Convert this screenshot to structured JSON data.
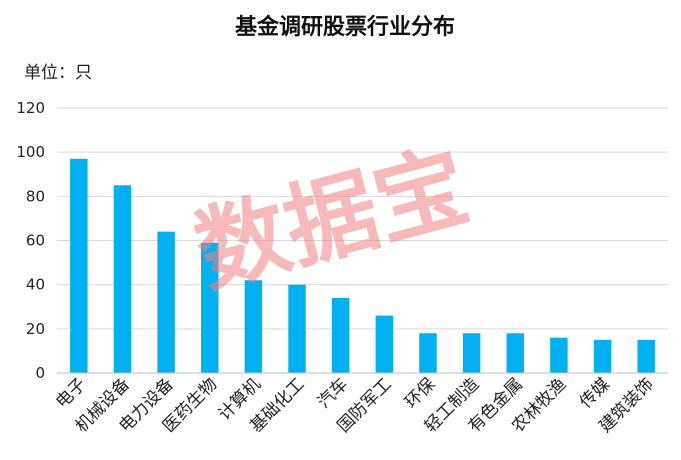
{
  "chart_data": {
    "type": "bar",
    "title": "基金调研股票行业分布",
    "unit_label": "单位：只",
    "categories": [
      "电子",
      "机械设备",
      "电力设备",
      "医药生物",
      "计算机",
      "基础化工",
      "汽车",
      "国防军工",
      "环保",
      "轻工制造",
      "有色金属",
      "农林牧渔",
      "传媒",
      "建筑装饰"
    ],
    "values": [
      97,
      85,
      64,
      59,
      42,
      40,
      34,
      26,
      18,
      18,
      18,
      16,
      15,
      15
    ],
    "ylim": [
      0,
      120
    ],
    "yticks": [
      0,
      20,
      40,
      60,
      80,
      100,
      120
    ],
    "grid": true,
    "bar_color": "#00b0f0",
    "watermark": "数据宝"
  }
}
